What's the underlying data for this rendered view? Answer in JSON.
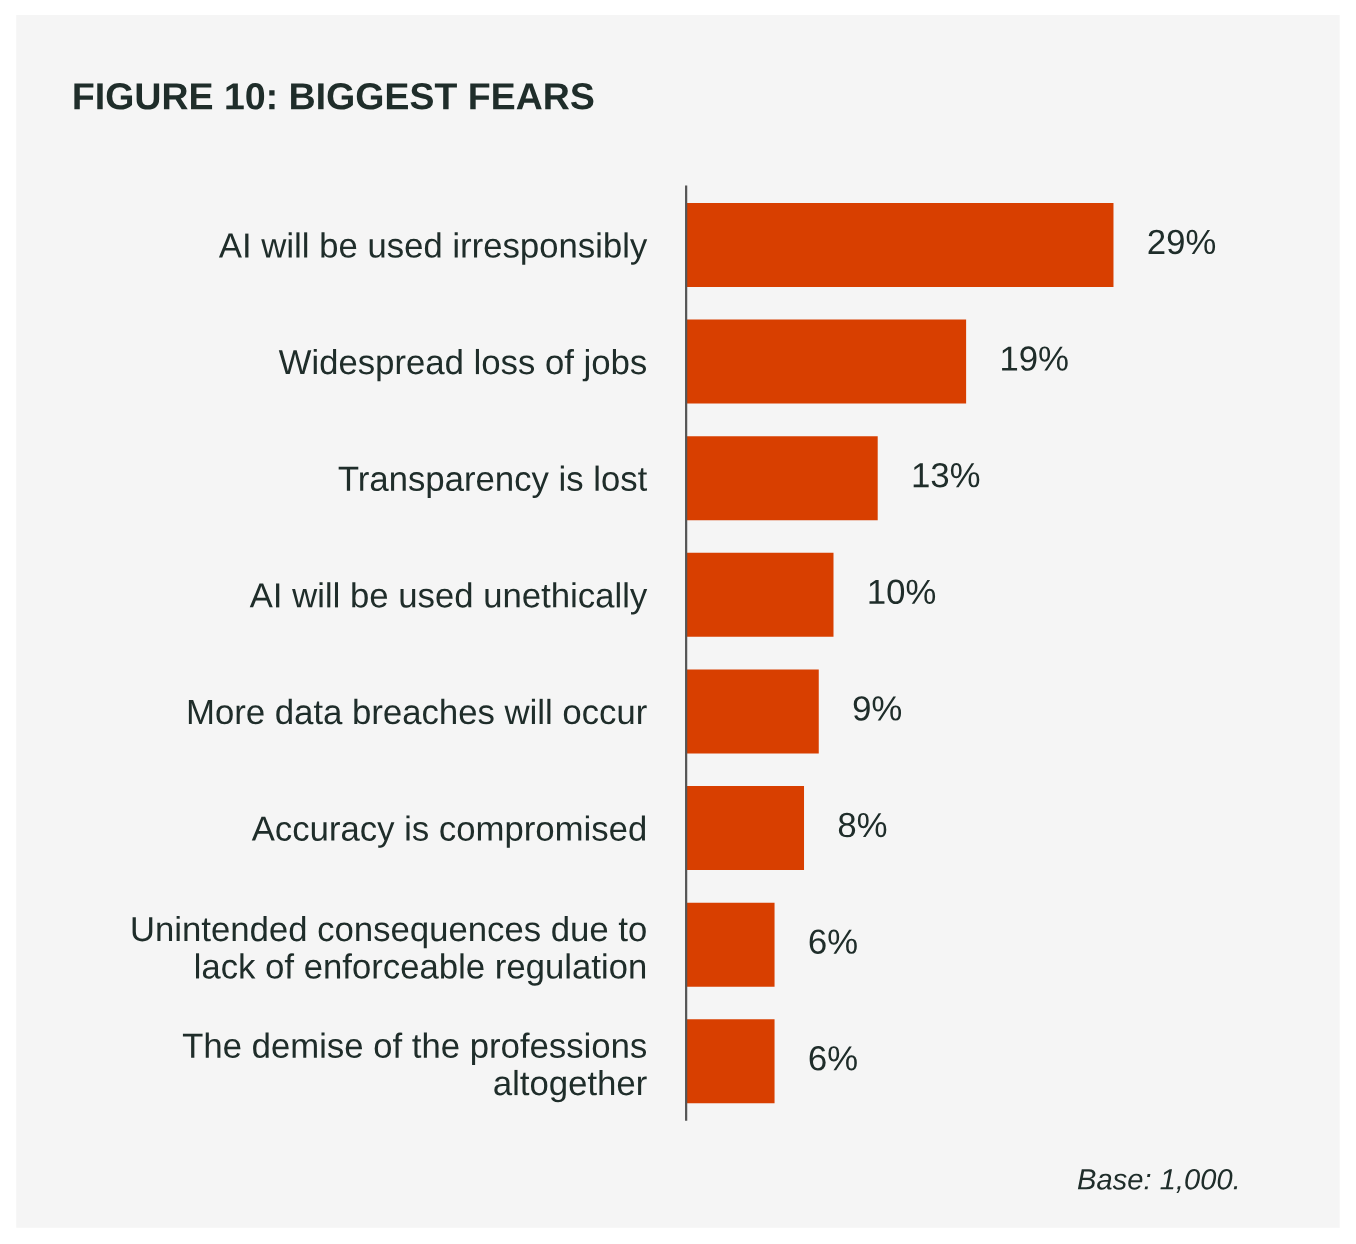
{
  "chart_data": {
    "type": "bar",
    "orientation": "horizontal",
    "title": "FIGURE 10: BIGGEST FEARS",
    "categories": [
      "AI will be used irresponsibly",
      "Widespread loss of jobs",
      "Transparency is lost",
      "AI will be used unethically",
      "More data breaches will occur",
      "Accuracy is compromised",
      "Unintended consequences due to\nlack of enforceable regulation",
      "The demise of the professions\naltogether"
    ],
    "values": [
      29,
      19,
      13,
      10,
      9,
      8,
      6,
      6
    ],
    "value_labels": [
      "29%",
      "19%",
      "13%",
      "10%",
      "9%",
      "8%",
      "6%",
      "6%"
    ],
    "color": "#d83f00",
    "grid": false,
    "legend": false,
    "annotations": [
      "Base: 1,000."
    ]
  }
}
